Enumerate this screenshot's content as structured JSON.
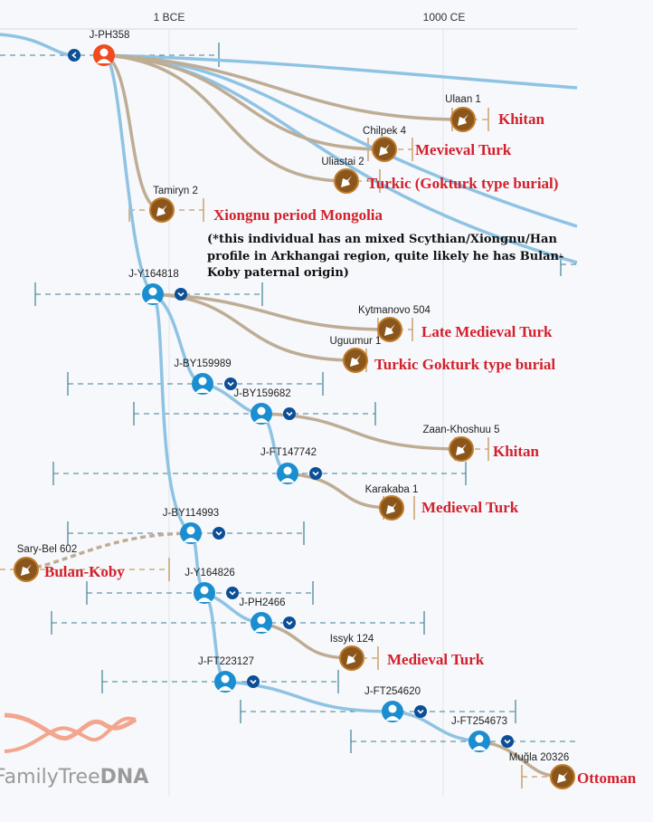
{
  "axis": {
    "ticks": [
      "1 BCE",
      "1000 CE"
    ]
  },
  "root": {
    "label": "J-PH358",
    "color": "#f04a1e"
  },
  "haplogroups": [
    "J-Y164818",
    "J-BY159989",
    "J-BY159682",
    "J-FT147742",
    "J-BY114993",
    "J-Y164826",
    "J-PH2466",
    "J-FT223127",
    "J-FT254620",
    "J-FT254673"
  ],
  "samples": [
    "Ulaan 1",
    "Chilpek 4",
    "Uliastai 2",
    "Tamiryn 2",
    "Kytmanovo 504",
    "Uguumur 1",
    "Zaan-Khoshuu 5",
    "Karakaba 1",
    "Sary-Bel 602",
    "Issyk 124",
    "Muğla 20326"
  ],
  "annotations": [
    "Khitan",
    "Mevieval Turk",
    "Turkic (Gokturk type burial)",
    "Xiongnu period Mongolia",
    "Late Medieval Turk",
    "Turkic Gokturk type burial",
    "Khitan",
    "Medieval Turk",
    "Bulan-Koby",
    "Medieval Turk",
    "Ottoman"
  ],
  "note": [
    "(*this individual has an mixed Scythian/Xiongnu/Han",
    "profile in Arkhangai region, quite likely he has Bulan-",
    "Koby paternal origin)"
  ],
  "logo": {
    "text_a": "FamilyTree",
    "text_b": "DNA"
  },
  "colors": {
    "haplogroup": "#1a8ed0",
    "expand": "#0c4f96",
    "sample": "#8b561c",
    "annotation": "#d3202c",
    "lineage": "#8fc3e3",
    "sample_branch": "#bfac94"
  }
}
